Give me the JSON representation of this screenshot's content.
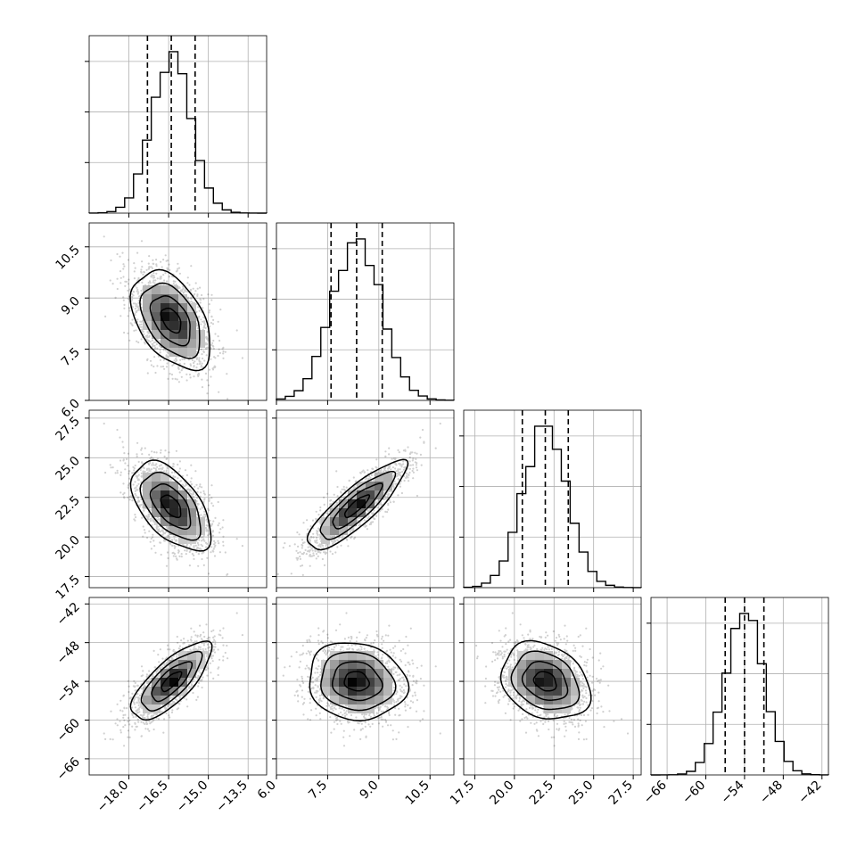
{
  "chart_data": {
    "type": "corner",
    "parameters": [
      {
        "range": [
          -19.5,
          -12.8
        ],
        "ticks": [
          -18.0,
          -16.5,
          -15.0,
          -13.5
        ],
        "tick_labels": [
          "−18.0",
          "−16.5",
          "−15.0",
          "−13.5"
        ],
        "quantiles": [
          -17.3,
          -16.4,
          -15.5
        ],
        "mean": -16.4,
        "std": 0.75
      },
      {
        "range": [
          6.0,
          11.2
        ],
        "ticks": [
          6.0,
          7.5,
          9.0,
          10.5
        ],
        "tick_labels": [
          "6.0",
          "7.5",
          "9.0",
          "10.5"
        ],
        "quantiles": [
          7.6,
          8.35,
          9.1
        ],
        "mean": 8.35,
        "std": 0.72
      },
      {
        "range": [
          16.8,
          28.0
        ],
        "ticks": [
          17.5,
          20.0,
          22.5,
          25.0,
          27.5
        ],
        "tick_labels": [
          "17.5",
          "20.0",
          "22.5",
          "25.0",
          "27.5"
        ],
        "quantiles": [
          20.5,
          21.95,
          23.4
        ],
        "mean": 21.95,
        "std": 1.4
      },
      {
        "range": [
          -68.5,
          -41.0
        ],
        "ticks": [
          -66,
          -60,
          -54,
          -48,
          -42
        ],
        "tick_labels": [
          "−66",
          "−60",
          "−54",
          "−48",
          "−42"
        ],
        "quantiles": [
          -57.0,
          -54.0,
          -51.0
        ],
        "mean": -54.0,
        "std": 3.0
      }
    ],
    "correlations": [
      [
        1.0,
        -0.45,
        -0.55,
        0.75
      ],
      [
        -0.45,
        1.0,
        0.85,
        -0.1
      ],
      [
        -0.55,
        0.85,
        1.0,
        -0.25
      ],
      [
        0.75,
        -0.1,
        -0.25,
        1.0
      ]
    ],
    "histogram_bins": 20,
    "contour_levels_sigma": [
      0.5,
      1.0,
      1.5,
      2.0
    ],
    "grid": true
  }
}
